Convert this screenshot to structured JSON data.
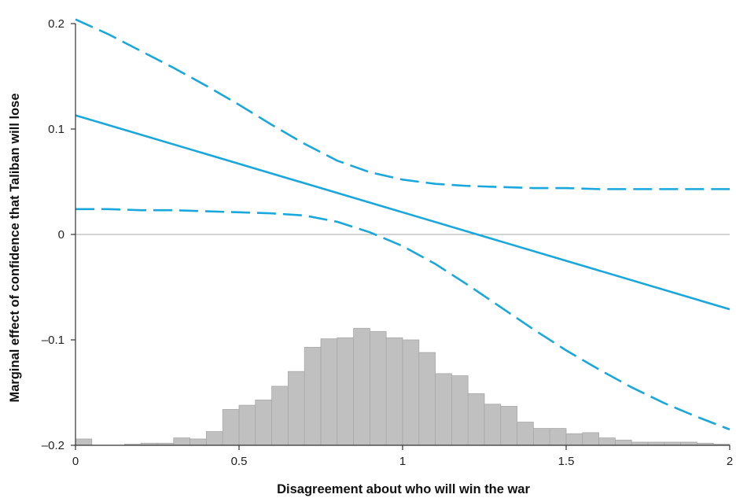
{
  "chart_data": {
    "type": "line",
    "title": "",
    "xlabel": "Disagreement about who will win the war",
    "ylabel": "Marginal effect of confidence that Taliban will lose",
    "xlim": [
      0,
      2
    ],
    "ylim": [
      -0.2,
      0.2
    ],
    "x_ticks": [
      0,
      0.5,
      1,
      1.5,
      2
    ],
    "x_tick_labels": [
      "0",
      "0.5",
      "1",
      "1.5",
      "2"
    ],
    "y_ticks": [
      0.2,
      0.1,
      0,
      -0.1,
      -0.2
    ],
    "y_tick_labels": [
      "0.2",
      "0.1",
      "0",
      "–0.1",
      "–0.2"
    ],
    "zero_reference_line": true,
    "grid": false,
    "colors": {
      "lines": "#1aa7dc",
      "histogram_fill": "#c0c0c0",
      "histogram_edge": "#a8a8a8",
      "axis": "#333333",
      "zero_line": "#aaaaaa"
    },
    "series": [
      {
        "style": "solid",
        "x": [
          0,
          2
        ],
        "y": [
          0.113,
          -0.071
        ]
      },
      {
        "style": "dashed",
        "x": [
          0,
          0.1,
          0.2,
          0.3,
          0.4,
          0.5,
          0.6,
          0.7,
          0.8,
          0.9,
          1.0,
          1.1,
          1.2,
          1.3,
          1.4,
          1.5,
          1.6,
          1.7,
          1.8,
          1.9,
          2.0
        ],
        "y": [
          0.204,
          0.19,
          0.174,
          0.158,
          0.141,
          0.123,
          0.104,
          0.086,
          0.07,
          0.059,
          0.052,
          0.048,
          0.046,
          0.045,
          0.044,
          0.044,
          0.043,
          0.043,
          0.043,
          0.043,
          0.043
        ]
      },
      {
        "style": "dashed",
        "x": [
          0,
          0.1,
          0.2,
          0.3,
          0.4,
          0.5,
          0.6,
          0.7,
          0.8,
          0.9,
          1.0,
          1.1,
          1.2,
          1.3,
          1.4,
          1.5,
          1.6,
          1.7,
          1.8,
          1.9,
          2.0
        ],
        "y": [
          0.024,
          0.024,
          0.023,
          0.023,
          0.022,
          0.021,
          0.02,
          0.018,
          0.012,
          0.002,
          -0.011,
          -0.028,
          -0.048,
          -0.069,
          -0.09,
          -0.11,
          -0.128,
          -0.145,
          -0.16,
          -0.173,
          -0.185
        ]
      }
    ],
    "histogram": {
      "bin_width": 0.05,
      "bin_starts": [
        0,
        0.05,
        0.1,
        0.15,
        0.2,
        0.25,
        0.3,
        0.35,
        0.4,
        0.45,
        0.5,
        0.55,
        0.6,
        0.65,
        0.7,
        0.75,
        0.8,
        0.85,
        0.9,
        0.95,
        1.0,
        1.05,
        1.1,
        1.15,
        1.2,
        1.25,
        1.3,
        1.35,
        1.4,
        1.45,
        1.5,
        1.55,
        1.6,
        1.65,
        1.7,
        1.75,
        1.8,
        1.85,
        1.9,
        1.95
      ],
      "heights": [
        0.006,
        0,
        0,
        0.001,
        0.002,
        0.002,
        0.007,
        0.006,
        0.013,
        0.034,
        0.038,
        0.043,
        0.056,
        0.07,
        0.093,
        0.101,
        0.102,
        0.111,
        0.108,
        0.102,
        0.1,
        0.088,
        0.068,
        0.066,
        0.049,
        0.039,
        0.037,
        0.022,
        0.016,
        0.016,
        0.011,
        0.012,
        0.007,
        0.005,
        0.003,
        0.003,
        0.003,
        0.003,
        0.002,
        0.001
      ]
    }
  }
}
